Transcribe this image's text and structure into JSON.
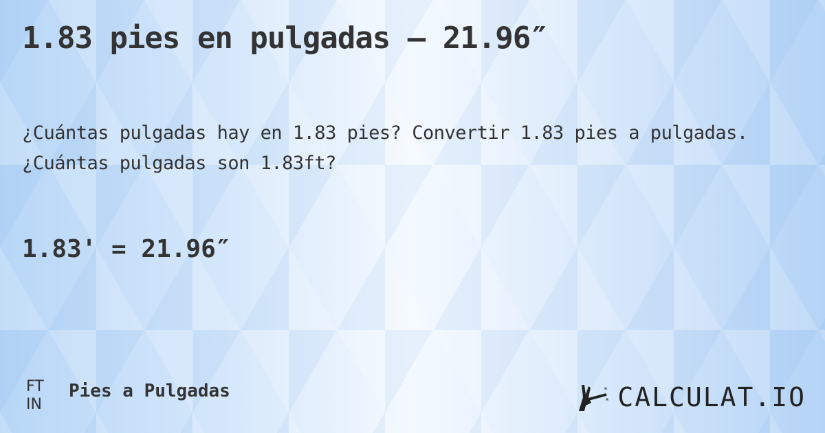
{
  "title": "1.83 pies en pulgadas — 21.96″",
  "description": "¿Cuántas pulgadas hay en 1.83 pies? Convertir 1.83 pies a pulgadas. ¿Cuántas pulgadas son 1.83ft?",
  "result": "1.83' = 21.96″",
  "footer": {
    "unit_from": "FT",
    "unit_to": "IN",
    "category": "Pies a Pulgadas",
    "logo_text": "CALCULAT.IO",
    "logo_icon": "magic-wand-hand-icon"
  }
}
